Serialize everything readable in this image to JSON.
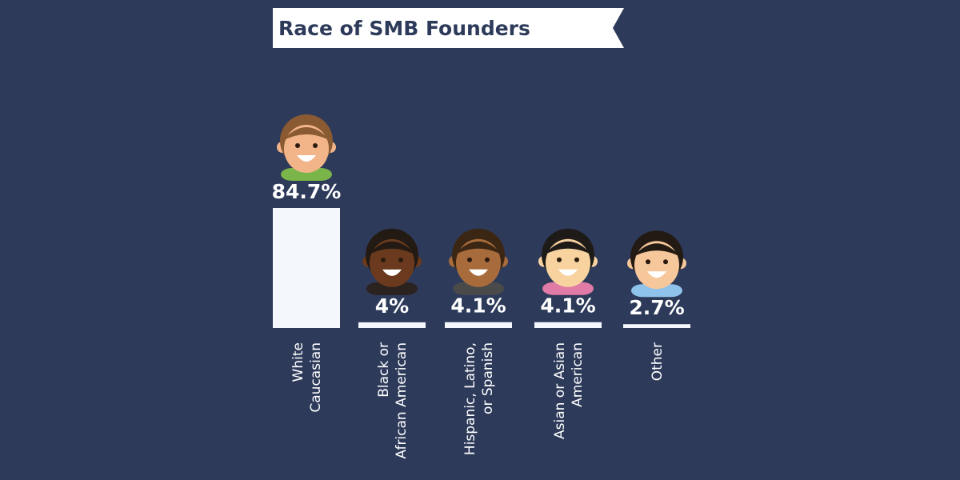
{
  "chart_data": {
    "type": "bar",
    "title": "Race of SMB Founders",
    "categories": [
      [
        "White",
        "Caucasian"
      ],
      [
        "Black or",
        "African American"
      ],
      [
        "Hispanic, Latino,",
        "or Spanish"
      ],
      [
        "Asian or Asian",
        "American"
      ],
      [
        "Other"
      ]
    ],
    "values": [
      84.7,
      4,
      4.1,
      4.1,
      2.7
    ],
    "value_labels": [
      "84.7%",
      "4%",
      "4.1%",
      "4.1%",
      "2.7%"
    ],
    "color": "#f4f8fd"
  }
}
